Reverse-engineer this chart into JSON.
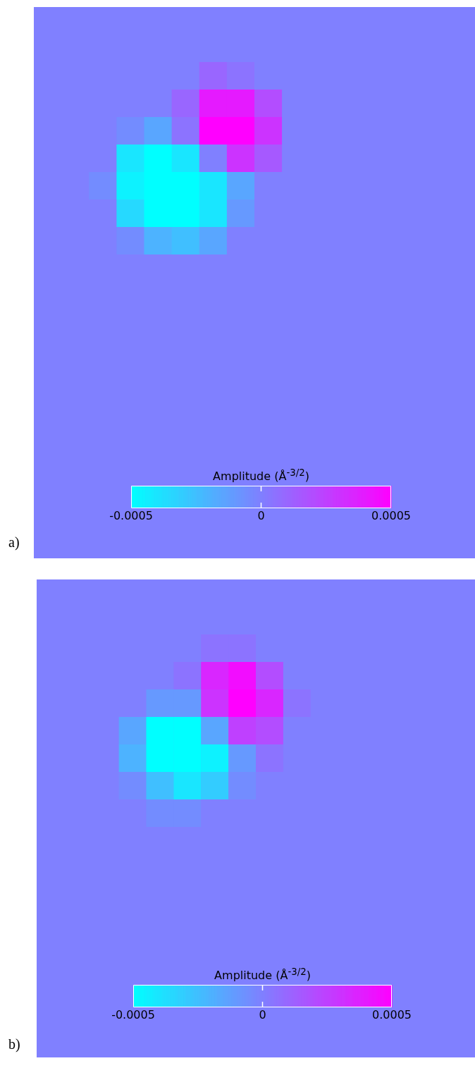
{
  "chart_data": [
    {
      "type": "heatmap",
      "title": "a)",
      "clabel": "Amplitude (Å$^{-3/2}$)",
      "clim": [
        -0.0005,
        0.0005
      ],
      "cticks": [
        -0.0005,
        0,
        0.0005
      ],
      "tick_labels": false,
      "categories": [
        null,
        null,
        null,
        null,
        null,
        null,
        null,
        null,
        null,
        null,
        null,
        null,
        null,
        null,
        null,
        null
      ],
      "y_categories": [
        null,
        null,
        null,
        null,
        null,
        null,
        null,
        null,
        null,
        null,
        null,
        null,
        null,
        null,
        null,
        null,
        null
      ],
      "cells": [
        [
          0,
          0,
          0,
          0,
          0,
          0,
          0,
          0,
          0,
          0,
          0,
          0,
          0,
          0,
          0,
          0
        ],
        [
          0,
          0,
          0,
          0,
          0,
          0,
          0,
          0,
          0,
          0,
          0,
          0,
          0,
          0,
          0,
          0
        ],
        [
          0,
          0,
          0,
          0,
          0,
          0,
          0.0001,
          5e-05,
          0,
          0,
          0,
          0,
          0,
          0,
          0,
          0
        ],
        [
          0,
          0,
          0,
          0,
          0,
          0.0001,
          0.0004,
          0.0004,
          0.0002,
          0,
          0,
          0,
          0,
          0,
          0,
          0
        ],
        [
          0,
          0,
          0,
          -5e-05,
          -0.00015,
          5e-05,
          0.0005,
          0.0005,
          0.0003,
          0,
          0,
          0,
          0,
          0,
          0,
          0
        ],
        [
          0,
          0,
          0,
          -0.0004,
          -0.0005,
          -0.0004,
          0,
          0.0003,
          0.00015,
          0,
          0,
          0,
          0,
          0,
          0,
          0
        ],
        [
          0,
          0,
          -5e-05,
          -0.00045,
          -0.0005,
          -0.0005,
          -0.0004,
          -0.00015,
          0,
          0,
          0,
          0,
          0,
          0,
          0,
          0
        ],
        [
          0,
          0,
          0,
          -0.00035,
          -0.0005,
          -0.0005,
          -0.0004,
          -0.0001,
          0,
          0,
          0,
          0,
          0,
          0,
          0,
          0
        ],
        [
          0,
          0,
          0,
          -5e-05,
          -0.0002,
          -0.00025,
          -0.00015,
          0,
          0,
          0,
          0,
          0,
          0,
          0,
          0,
          0
        ],
        [
          0,
          0,
          0,
          0,
          0,
          0,
          0,
          0,
          0,
          0,
          0,
          0,
          0,
          0,
          0,
          0
        ],
        [
          0,
          0,
          0,
          0,
          0,
          0,
          0,
          0,
          0,
          0,
          0,
          0,
          0,
          0,
          0,
          0
        ],
        [
          0,
          0,
          0,
          0,
          0,
          0,
          0,
          0,
          0,
          0,
          0,
          0,
          0,
          0,
          0,
          0
        ],
        [
          0,
          0,
          0,
          0,
          0,
          0,
          0,
          0,
          0,
          0,
          0,
          0,
          0,
          0,
          0,
          0
        ],
        [
          0,
          0,
          0,
          0,
          0,
          0,
          0,
          0,
          0,
          0,
          0,
          0,
          0,
          0,
          0,
          0
        ],
        [
          0,
          0,
          0,
          0,
          0,
          0,
          0,
          0,
          0,
          0,
          0,
          0,
          0,
          0,
          0,
          0
        ],
        [
          0,
          0,
          0,
          0,
          0,
          0,
          0,
          0,
          0,
          0,
          0,
          0,
          0,
          0,
          0,
          0
        ],
        [
          0,
          0,
          0,
          0,
          0,
          0,
          0,
          0,
          0,
          0,
          0,
          0,
          0,
          0,
          0,
          0
        ]
      ]
    },
    {
      "type": "heatmap",
      "title": "b)",
      "clabel": "Amplitude (Å$^{-3/2}$)",
      "clim": [
        -0.0005,
        0.0005
      ],
      "cticks": [
        -0.0005,
        0,
        0.0005
      ],
      "tick_labels": false,
      "categories": [
        null,
        null,
        null,
        null,
        null,
        null,
        null,
        null,
        null,
        null,
        null,
        null,
        null,
        null,
        null,
        null
      ],
      "y_categories": [
        null,
        null,
        null,
        null,
        null,
        null,
        null,
        null,
        null,
        null,
        null,
        null,
        null,
        null
      ],
      "cells": [
        [
          0,
          0,
          0,
          0,
          0,
          0,
          0,
          0,
          0,
          0,
          0,
          0,
          0,
          0,
          0,
          0
        ],
        [
          0,
          0,
          0,
          0,
          0,
          0,
          0,
          0,
          0,
          0,
          0,
          0,
          0,
          0,
          0,
          0
        ],
        [
          0,
          0,
          0,
          0,
          0,
          0,
          5e-05,
          5e-05,
          0,
          0,
          0,
          0,
          0,
          0,
          0,
          0
        ],
        [
          0,
          0,
          0,
          0,
          0,
          5e-05,
          0.00035,
          0.00045,
          0.0002,
          0,
          0,
          0,
          0,
          0,
          0,
          0
        ],
        [
          0,
          0,
          0,
          0,
          -0.0001,
          -0.0001,
          0.0003,
          0.0005,
          0.00035,
          5e-05,
          0,
          0,
          0,
          0,
          0,
          0
        ],
        [
          0,
          0,
          0,
          -0.00015,
          -0.0005,
          -0.0005,
          -0.00015,
          0.00025,
          0.0002,
          0,
          0,
          0,
          0,
          0,
          0,
          0
        ],
        [
          0,
          0,
          0,
          -0.0002,
          -0.0005,
          -0.0005,
          -0.00045,
          -0.0001,
          5e-05,
          0,
          0,
          0,
          0,
          0,
          0,
          0
        ],
        [
          0,
          0,
          0,
          -5e-05,
          -0.00025,
          -0.0004,
          -0.0003,
          -5e-05,
          0,
          0,
          0,
          0,
          0,
          0,
          0,
          0
        ],
        [
          0,
          0,
          0,
          0,
          -5e-05,
          -5e-05,
          0,
          0,
          0,
          0,
          0,
          0,
          0,
          0,
          0,
          0
        ],
        [
          0,
          0,
          0,
          0,
          0,
          0,
          0,
          0,
          0,
          0,
          0,
          0,
          0,
          0,
          0,
          0
        ],
        [
          0,
          0,
          0,
          0,
          0,
          0,
          0,
          0,
          0,
          0,
          0,
          0,
          0,
          0,
          0,
          0
        ],
        [
          0,
          0,
          0,
          0,
          0,
          0,
          0,
          0,
          0,
          0,
          0,
          0,
          0,
          0,
          0,
          0
        ],
        [
          0,
          0,
          0,
          0,
          0,
          0,
          0,
          0,
          0,
          0,
          0,
          0,
          0,
          0,
          0,
          0
        ],
        [
          0,
          0,
          0,
          0,
          0,
          0,
          0,
          0,
          0,
          0,
          0,
          0,
          0,
          0,
          0,
          0
        ]
      ]
    }
  ]
}
